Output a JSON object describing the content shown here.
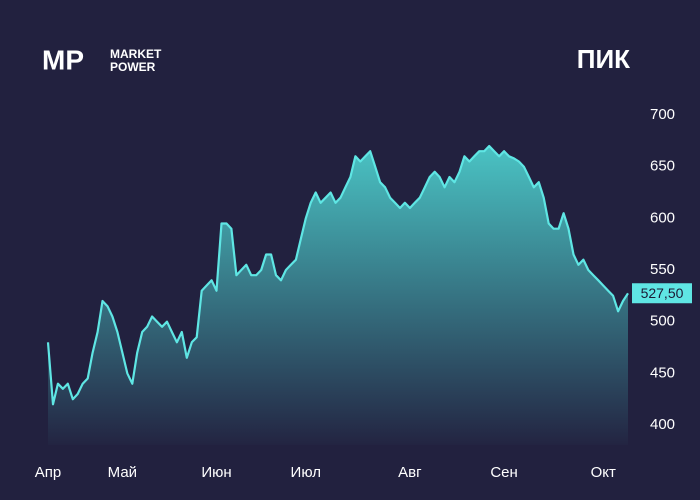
{
  "brand": {
    "mark": "MP",
    "line1": "MARKET",
    "line2": "POWER"
  },
  "chart_data": {
    "type": "area",
    "title": "ПИК",
    "categories": [
      "Апр",
      null,
      null,
      null,
      null,
      null,
      null,
      null,
      null,
      null,
      null,
      null,
      null,
      null,
      null,
      "Май",
      null,
      null,
      null,
      null,
      null,
      null,
      null,
      null,
      null,
      null,
      null,
      null,
      null,
      null,
      null,
      null,
      null,
      null,
      "Июн",
      null,
      null,
      null,
      null,
      null,
      null,
      null,
      null,
      null,
      null,
      null,
      null,
      null,
      null,
      null,
      null,
      null,
      "Июл",
      null,
      null,
      null,
      null,
      null,
      null,
      null,
      null,
      null,
      null,
      null,
      null,
      null,
      null,
      null,
      null,
      null,
      null,
      null,
      null,
      "Авг",
      null,
      null,
      null,
      null,
      null,
      null,
      null,
      null,
      null,
      null,
      null,
      null,
      null,
      null,
      null,
      null,
      null,
      null,
      "Сен",
      null,
      null,
      null,
      null,
      null,
      null,
      null,
      null,
      null,
      null,
      null,
      null,
      null,
      null,
      null,
      null,
      null,
      null,
      null,
      "Окт",
      null,
      null,
      null,
      null,
      null
    ],
    "series": [
      {
        "color": "#5fe6e4",
        "values": [
          480,
          420,
          440,
          435,
          440,
          425,
          430,
          440,
          445,
          470,
          490,
          520,
          515,
          505,
          490,
          470,
          450,
          440,
          470,
          490,
          495,
          505,
          500,
          495,
          500,
          490,
          480,
          490,
          465,
          480,
          485,
          530,
          535,
          540,
          530,
          595,
          595,
          590,
          545,
          550,
          555,
          545,
          545,
          550,
          565,
          565,
          545,
          540,
          550,
          555,
          560,
          580,
          600,
          615,
          625,
          615,
          620,
          625,
          615,
          620,
          630,
          640,
          660,
          655,
          660,
          665,
          650,
          635,
          630,
          620,
          615,
          610,
          615,
          610,
          615,
          620,
          630,
          640,
          645,
          640,
          630,
          640,
          635,
          645,
          660,
          655,
          660,
          665,
          665,
          670,
          665,
          660,
          665,
          660,
          658,
          655,
          650,
          640,
          630,
          635,
          620,
          595,
          590,
          590,
          605,
          590,
          565,
          555,
          560,
          550,
          545,
          540,
          535,
          530,
          525,
          510,
          520,
          527.5
        ]
      }
    ],
    "last_value_label": "527,50",
    "ylim": [
      400,
      700
    ],
    "yticks": [
      400,
      450,
      500,
      550,
      600,
      650,
      700
    ],
    "grid": false
  }
}
